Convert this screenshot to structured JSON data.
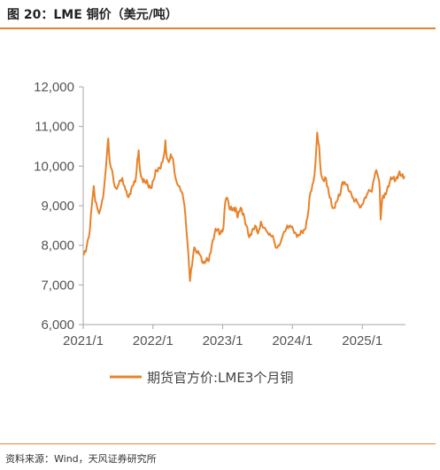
{
  "header": {
    "title": "图 20：LME 铜价（美元/吨）"
  },
  "footer": {
    "source": "资料来源：Wind，天风证券研究所"
  },
  "colors": {
    "accent": "#E8822A",
    "series": "#E8822A",
    "axis": "#A6A6A6",
    "text": "#555555"
  },
  "chart_data": {
    "type": "line",
    "title": "",
    "xlabel": "",
    "ylabel": "",
    "x_range": [
      "2021-01-01",
      "2025-08-15"
    ],
    "ylim": [
      6000,
      12000
    ],
    "y_ticks": [
      6000,
      7000,
      8000,
      9000,
      10000,
      11000,
      12000
    ],
    "y_tick_labels": [
      "6,000",
      "7,000",
      "8,000",
      "9,000",
      "10,000",
      "11,000",
      "12,000"
    ],
    "x_ticks": [
      "2021-01-01",
      "2022-01-01",
      "2023-01-01",
      "2024-01-01",
      "2025-01-01"
    ],
    "x_tick_labels": [
      "2021/1",
      "2022/1",
      "2023/1",
      "2024/1",
      "2025/1"
    ],
    "grid": false,
    "legend_position": "bottom",
    "series": [
      {
        "name": "期货官方价:LME3个月铜",
        "x": [
          "2021-01-04",
          "2021-01-20",
          "2021-02-05",
          "2021-02-15",
          "2021-02-25",
          "2021-03-05",
          "2021-03-15",
          "2021-03-25",
          "2021-04-05",
          "2021-04-15",
          "2021-04-25",
          "2021-05-05",
          "2021-05-12",
          "2021-05-20",
          "2021-06-01",
          "2021-06-10",
          "2021-06-20",
          "2021-07-01",
          "2021-07-15",
          "2021-07-25",
          "2021-08-05",
          "2021-08-20",
          "2021-09-01",
          "2021-09-15",
          "2021-10-01",
          "2021-10-12",
          "2021-10-18",
          "2021-10-25",
          "2021-11-05",
          "2021-11-20",
          "2021-12-05",
          "2021-12-20",
          "2022-01-05",
          "2022-01-20",
          "2022-02-05",
          "2022-02-20",
          "2022-03-01",
          "2022-03-07",
          "2022-03-15",
          "2022-03-25",
          "2022-04-05",
          "2022-04-15",
          "2022-04-25",
          "2022-05-05",
          "2022-05-15",
          "2022-05-25",
          "2022-06-05",
          "2022-06-15",
          "2022-06-25",
          "2022-07-05",
          "2022-07-14",
          "2022-07-25",
          "2022-08-05",
          "2022-08-20",
          "2022-09-05",
          "2022-09-20",
          "2022-10-05",
          "2022-10-20",
          "2022-11-05",
          "2022-11-20",
          "2022-12-05",
          "2022-12-20",
          "2023-01-05",
          "2023-01-15",
          "2023-01-25",
          "2023-02-10",
          "2023-02-25",
          "2023-03-10",
          "2023-03-20",
          "2023-04-05",
          "2023-04-20",
          "2023-05-05",
          "2023-05-20",
          "2023-06-05",
          "2023-06-20",
          "2023-07-05",
          "2023-07-20",
          "2023-08-05",
          "2023-08-20",
          "2023-09-05",
          "2023-09-20",
          "2023-10-05",
          "2023-10-20",
          "2023-11-05",
          "2023-11-20",
          "2023-12-05",
          "2023-12-20",
          "2024-01-05",
          "2024-01-20",
          "2024-02-05",
          "2024-02-20",
          "2024-03-05",
          "2024-03-20",
          "2024-04-05",
          "2024-04-20",
          "2024-05-01",
          "2024-05-10",
          "2024-05-20",
          "2024-05-30",
          "2024-06-10",
          "2024-06-25",
          "2024-07-10",
          "2024-07-25",
          "2024-08-05",
          "2024-08-20",
          "2024-09-05",
          "2024-09-20",
          "2024-10-05",
          "2024-10-20",
          "2024-11-05",
          "2024-11-20",
          "2024-12-05",
          "2024-12-20",
          "2025-01-05",
          "2025-01-20",
          "2025-02-05",
          "2025-02-20",
          "2025-03-05",
          "2025-03-15",
          "2025-03-26",
          "2025-04-02",
          "2025-04-07",
          "2025-04-15",
          "2025-04-25",
          "2025-05-10",
          "2025-05-25",
          "2025-06-10",
          "2025-06-25",
          "2025-07-10",
          "2025-07-25",
          "2025-08-10"
        ],
        "y": [
          7750,
          8000,
          8400,
          9000,
          9500,
          9100,
          8950,
          8800,
          9000,
          9200,
          9700,
          10300,
          10700,
          10100,
          9900,
          9600,
          9450,
          9500,
          9650,
          9700,
          9500,
          9250,
          9300,
          9500,
          9600,
          10200,
          10400,
          9900,
          9700,
          9600,
          9550,
          9450,
          9650,
          9900,
          9950,
          10100,
          10300,
          10650,
          10200,
          10100,
          10300,
          10200,
          9800,
          9600,
          9500,
          9400,
          9300,
          9000,
          8400,
          7800,
          7100,
          7500,
          7950,
          7800,
          7750,
          7550,
          7600,
          7600,
          8000,
          8300,
          8400,
          8300,
          8450,
          9100,
          9200,
          8900,
          8900,
          8950,
          8700,
          8950,
          8800,
          8500,
          8200,
          8400,
          8500,
          8300,
          8600,
          8450,
          8350,
          8300,
          8250,
          7950,
          8000,
          8150,
          8350,
          8500,
          8500,
          8400,
          8300,
          8250,
          8350,
          8400,
          8700,
          9350,
          9600,
          10100,
          10850,
          10500,
          9800,
          9650,
          9700,
          9300,
          9000,
          8950,
          9100,
          9250,
          9600,
          9550,
          9400,
          9300,
          9100,
          9100,
          8950,
          9050,
          9200,
          9400,
          9350,
          9700,
          9900,
          9700,
          9450,
          8650,
          9150,
          9200,
          9400,
          9600,
          9700,
          9650,
          9800,
          9750,
          9750
        ]
      }
    ]
  }
}
